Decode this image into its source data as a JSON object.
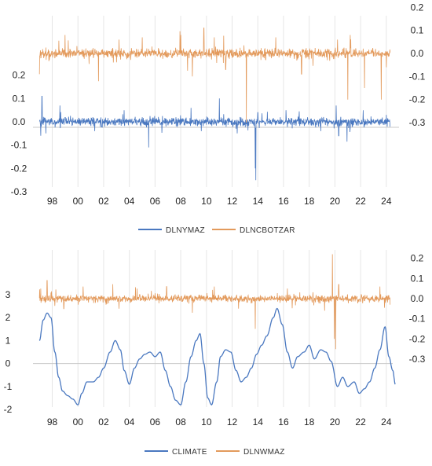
{
  "colors": {
    "blue": "#4a78c0",
    "orange": "#e39a5c",
    "grid": "#e6e6e6"
  },
  "chart_data": [
    {
      "type": "line",
      "x_tick_labels": [
        "98",
        "00",
        "02",
        "04",
        "06",
        "08",
        "10",
        "12",
        "14",
        "16",
        "18",
        "20",
        "22",
        "24"
      ],
      "x_ticks": [
        1998,
        2000,
        2002,
        2004,
        2006,
        2008,
        2010,
        2012,
        2014,
        2016,
        2018,
        2020,
        2022,
        2024
      ],
      "xlim": [
        1996.5,
        2024.5
      ],
      "left_axis": {
        "ticks": [
          0.2,
          0.1,
          0.0,
          -0.1,
          -0.2,
          -0.3
        ],
        "labels": [
          "0.2",
          "0.1",
          "0.0",
          "-0.1",
          "-0.2",
          "-0.3"
        ],
        "ylim": [
          -0.3,
          0.2
        ]
      },
      "right_axis": {
        "ticks": [
          0.2,
          0.1,
          0.0,
          -0.1,
          -0.2,
          -0.3
        ],
        "labels": [
          "0.2",
          "0.1",
          "0.0",
          "-0.1",
          "-0.2",
          "-0.3"
        ],
        "ylim": [
          -0.3,
          0.2
        ]
      },
      "legend_position": "bottom",
      "series": [
        {
          "name": "DLNYMAZ",
          "axis": "left",
          "color": "#4a78c0",
          "kind": "returns",
          "noise_sd": 0.009,
          "spikes": [
            [
              1997.1,
              -0.06
            ],
            [
              1997.2,
              0.11
            ],
            [
              1997.5,
              -0.05
            ],
            [
              1998.6,
              0.07
            ],
            [
              2001.3,
              -0.04
            ],
            [
              2003.6,
              0.05
            ],
            [
              2005.5,
              -0.11
            ],
            [
              2008.8,
              0.06
            ],
            [
              2009.6,
              -0.04
            ],
            [
              2011.0,
              0.1
            ],
            [
              2012.4,
              -0.05
            ],
            [
              2013.8,
              -0.2
            ],
            [
              2013.85,
              -0.25
            ],
            [
              2014.0,
              0.04
            ],
            [
              2016.2,
              0.05
            ],
            [
              2018.9,
              -0.04
            ],
            [
              2020.1,
              0.07
            ],
            [
              2020.3,
              -0.06
            ],
            [
              2022.2,
              0.05
            ],
            [
              2024.0,
              0.03
            ]
          ]
        },
        {
          "name": "DLNCBOTZAR",
          "axis": "right",
          "color": "#e39a5c",
          "kind": "returns",
          "noise_sd": 0.01,
          "spikes": [
            [
              1997.0,
              -0.09
            ],
            [
              1999.0,
              0.08
            ],
            [
              2001.6,
              -0.12
            ],
            [
              2003.2,
              0.06
            ],
            [
              2005.0,
              0.07
            ],
            [
              2008.0,
              0.08
            ],
            [
              2008.9,
              -0.1
            ],
            [
              2009.8,
              0.11
            ],
            [
              2010.6,
              0.07
            ],
            [
              2011.5,
              -0.07
            ],
            [
              2013.1,
              -0.3
            ],
            [
              2015.4,
              0.07
            ],
            [
              2017.4,
              -0.09
            ],
            [
              2020.2,
              0.06
            ],
            [
              2021.0,
              -0.2
            ],
            [
              2021.2,
              0.08
            ],
            [
              2022.3,
              -0.15
            ],
            [
              2023.6,
              -0.2
            ],
            [
              2024.0,
              -0.06
            ]
          ]
        }
      ]
    },
    {
      "type": "line",
      "x_tick_labels": [
        "98",
        "00",
        "02",
        "04",
        "06",
        "08",
        "10",
        "12",
        "14",
        "16",
        "18",
        "20",
        "22",
        "24"
      ],
      "x_ticks": [
        1998,
        2000,
        2002,
        2004,
        2006,
        2008,
        2010,
        2012,
        2014,
        2016,
        2018,
        2020,
        2022,
        2024
      ],
      "xlim": [
        1996.5,
        2024.5
      ],
      "left_axis": {
        "ticks": [
          3,
          2,
          1,
          0,
          -1,
          -2
        ],
        "labels": [
          "3",
          "2",
          "1",
          "0",
          "-1",
          "-2"
        ],
        "ylim": [
          -2,
          3
        ]
      },
      "right_axis": {
        "ticks": [
          0.2,
          0.1,
          0.0,
          -0.1,
          -0.2,
          -0.3
        ],
        "labels": [
          "0.2",
          "0.1",
          "0.0",
          "-0.1",
          "-0.2",
          "-0.3"
        ],
        "ylim": [
          -0.3,
          0.2
        ]
      },
      "legend_position": "bottom",
      "series": [
        {
          "name": "CLIMATE",
          "axis": "left",
          "color": "#4a78c0",
          "kind": "smooth",
          "points": [
            [
              1997.0,
              1.0
            ],
            [
              1997.3,
              1.9
            ],
            [
              1997.6,
              2.2
            ],
            [
              1997.9,
              2.0
            ],
            [
              1998.2,
              0.5
            ],
            [
              1998.5,
              -0.6
            ],
            [
              1998.8,
              -1.2
            ],
            [
              1999.2,
              -1.4
            ],
            [
              1999.6,
              -1.55
            ],
            [
              2000.0,
              -1.8
            ],
            [
              2000.3,
              -1.3
            ],
            [
              2000.7,
              -0.8
            ],
            [
              2001.2,
              -0.8
            ],
            [
              2001.6,
              -0.6
            ],
            [
              2002.0,
              -0.2
            ],
            [
              2002.5,
              0.5
            ],
            [
              2002.9,
              1.0
            ],
            [
              2003.3,
              0.6
            ],
            [
              2003.6,
              -0.3
            ],
            [
              2004.0,
              -0.9
            ],
            [
              2004.4,
              -0.2
            ],
            [
              2004.8,
              0.2
            ],
            [
              2005.2,
              0.4
            ],
            [
              2005.6,
              0.5
            ],
            [
              2006.0,
              0.3
            ],
            [
              2006.4,
              0.5
            ],
            [
              2006.8,
              -0.3
            ],
            [
              2007.2,
              -1.0
            ],
            [
              2007.6,
              -1.6
            ],
            [
              2008.0,
              -1.8
            ],
            [
              2008.4,
              -0.8
            ],
            [
              2008.8,
              0.3
            ],
            [
              2009.2,
              1.0
            ],
            [
              2009.5,
              1.3
            ],
            [
              2009.8,
              0.0
            ],
            [
              2010.1,
              -1.5
            ],
            [
              2010.4,
              -1.8
            ],
            [
              2010.8,
              -0.8
            ],
            [
              2011.1,
              0.3
            ],
            [
              2011.5,
              0.6
            ],
            [
              2011.9,
              0.5
            ],
            [
              2012.3,
              -0.3
            ],
            [
              2012.7,
              -0.8
            ],
            [
              2013.1,
              -0.6
            ],
            [
              2013.5,
              -0.2
            ],
            [
              2013.9,
              0.4
            ],
            [
              2014.3,
              0.8
            ],
            [
              2014.7,
              1.2
            ],
            [
              2015.2,
              2.0
            ],
            [
              2015.5,
              2.4
            ],
            [
              2015.9,
              1.7
            ],
            [
              2016.3,
              0.5
            ],
            [
              2016.7,
              -0.2
            ],
            [
              2017.1,
              0.3
            ],
            [
              2017.6,
              0.5
            ],
            [
              2018.0,
              0.8
            ],
            [
              2018.4,
              0.2
            ],
            [
              2018.9,
              0.6
            ],
            [
              2019.3,
              0.5
            ],
            [
              2019.7,
              0.1
            ],
            [
              2020.2,
              -1.0
            ],
            [
              2020.6,
              -0.6
            ],
            [
              2021.0,
              -1.0
            ],
            [
              2021.5,
              -0.8
            ],
            [
              2021.9,
              -1.3
            ],
            [
              2022.3,
              -1.1
            ],
            [
              2022.7,
              -0.8
            ],
            [
              2023.1,
              -0.2
            ],
            [
              2023.5,
              0.6
            ],
            [
              2023.9,
              1.6
            ],
            [
              2024.2,
              0.3
            ],
            [
              2024.5,
              -0.3
            ],
            [
              2024.7,
              -0.9
            ]
          ]
        },
        {
          "name": "DLNWMAZ",
          "axis": "right",
          "color": "#e39a5c",
          "kind": "returns",
          "noise_sd": 0.009,
          "spikes": [
            [
              1997.1,
              0.05
            ],
            [
              1997.6,
              0.09
            ],
            [
              1998.9,
              -0.05
            ],
            [
              2000.4,
              0.06
            ],
            [
              2003.2,
              -0.05
            ],
            [
              2004.6,
              0.05
            ],
            [
              2006.9,
              0.06
            ],
            [
              2008.9,
              -0.07
            ],
            [
              2010.6,
              0.06
            ],
            [
              2012.5,
              -0.05
            ],
            [
              2013.8,
              -0.15
            ],
            [
              2016.3,
              0.05
            ],
            [
              2019.2,
              -0.06
            ],
            [
              2019.8,
              0.22
            ],
            [
              2019.95,
              -0.2
            ],
            [
              2020.05,
              -0.25
            ],
            [
              2020.3,
              0.07
            ],
            [
              2023.5,
              0.06
            ]
          ]
        }
      ]
    }
  ]
}
